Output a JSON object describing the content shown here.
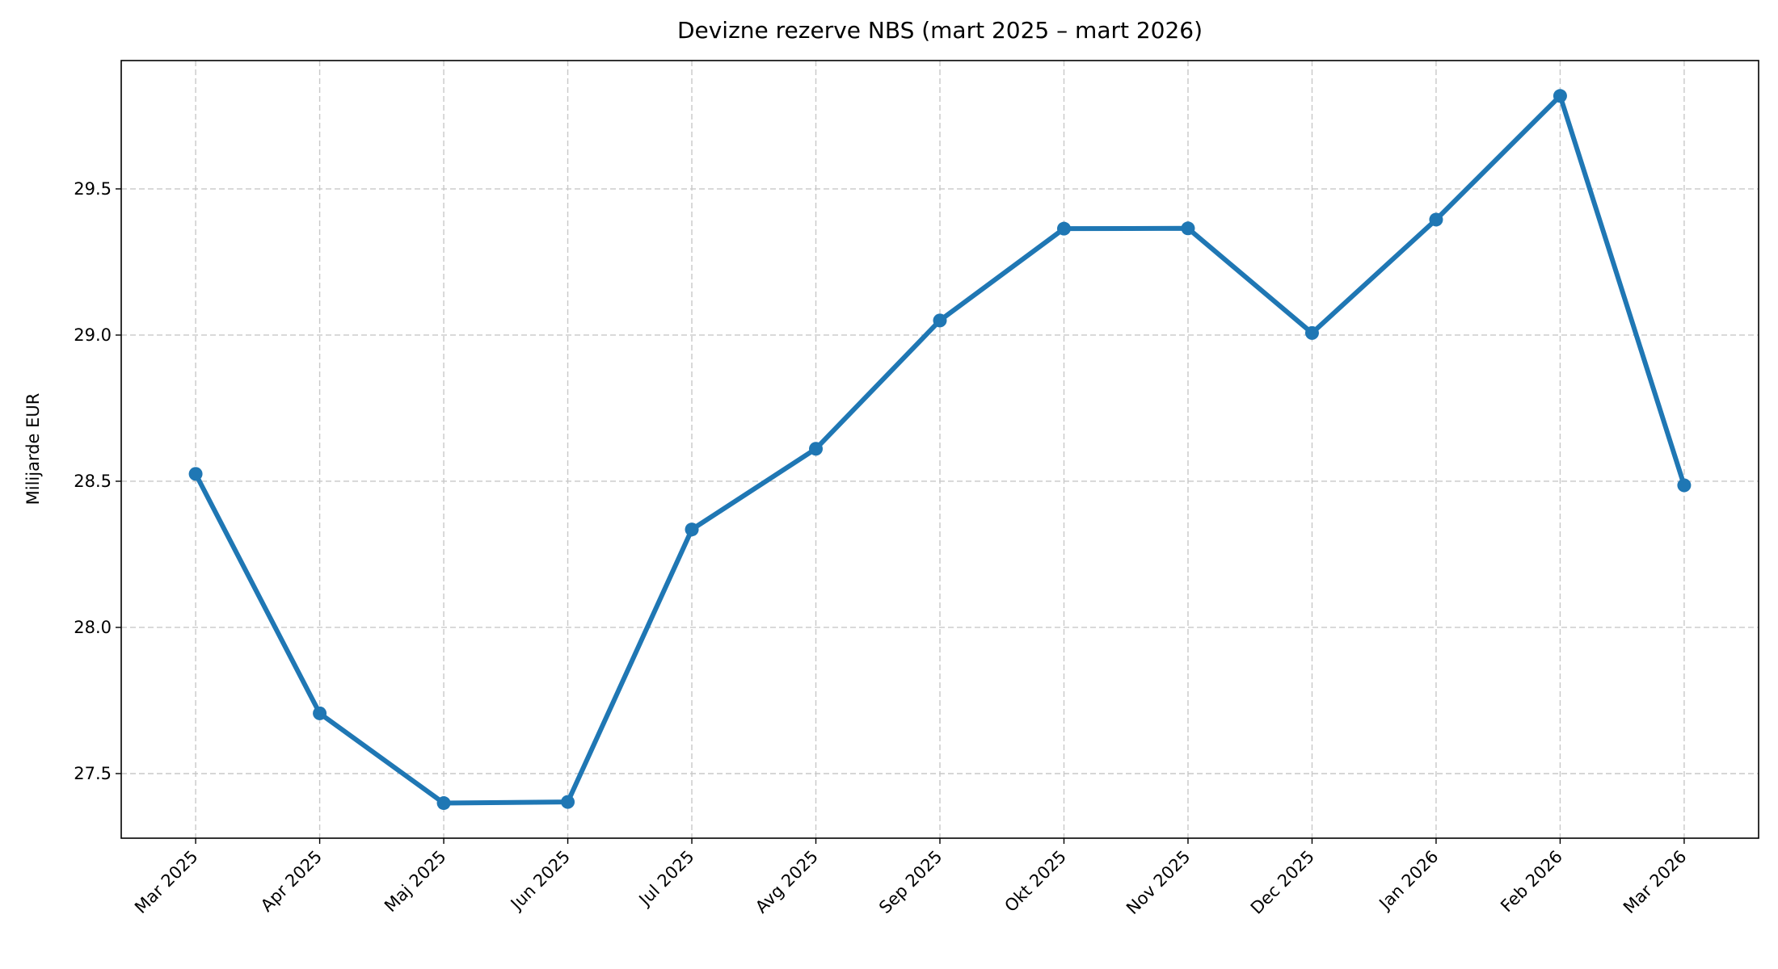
{
  "chart_data": {
    "type": "line",
    "title": "Devizne rezerve NBS (mart 2025 – mart 2026)",
    "y_label": "Milijarde EUR",
    "categories": [
      "Mar 2025",
      "Apr 2025",
      "Maj 2025",
      "Jun 2025",
      "Jul 2025",
      "Avg 2025",
      "Sep 2025",
      "Okt 2025",
      "Nov 2025",
      "Dec 2025",
      "Jan 2026",
      "Feb 2026",
      "Mar 2026"
    ],
    "series": [
      {
        "color": "#1f77b4",
        "values": [
          28.525,
          27.706,
          27.399,
          27.403,
          28.335,
          28.611,
          29.05,
          29.364,
          29.365,
          29.007,
          29.395,
          29.818,
          28.486
        ]
      }
    ],
    "ylim": [
      27.279,
      29.939
    ],
    "yticks": [
      27.5,
      {
        "value": 28.0,
        "label": "28.0"
      },
      28.5,
      {
        "value": 29.0,
        "label": "29.0"
      },
      29.5
    ],
    "grid": true
  }
}
